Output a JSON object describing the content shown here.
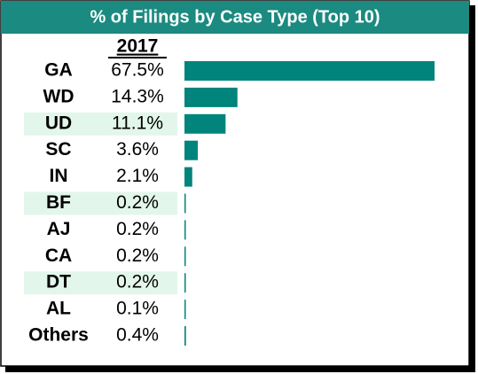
{
  "chart_data": {
    "type": "bar",
    "title": "% of Filings by Case Type (Top 10)",
    "column_header": "2017",
    "categories": [
      "GA",
      "WD",
      "UD",
      "SC",
      "IN",
      "BF",
      "AJ",
      "CA",
      "DT",
      "AL",
      "Others"
    ],
    "values": [
      67.5,
      14.3,
      11.1,
      3.6,
      2.1,
      0.2,
      0.2,
      0.2,
      0.2,
      0.1,
      0.4
    ],
    "value_labels": [
      "67.5%",
      "14.3%",
      "11.1%",
      "3.6%",
      "2.1%",
      "0.2%",
      "0.2%",
      "0.2%",
      "0.2%",
      "0.1%",
      "0.4%"
    ],
    "color": "#00847c",
    "title_background": "#1b8a80",
    "row_band_color": "#e3f6ec"
  }
}
